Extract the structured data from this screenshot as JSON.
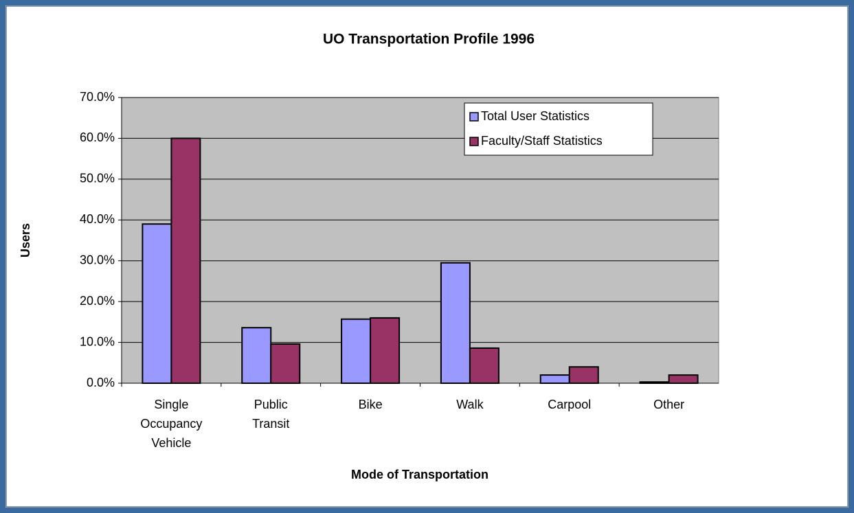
{
  "chart_data": {
    "type": "bar",
    "title": "UO Transportation Profile 1996",
    "x_label": "Mode of Transportation",
    "y_label": "Users",
    "categories": [
      "Single Occupancy Vehicle",
      "Public Transit",
      "Bike",
      "Walk",
      "Carpool",
      "Other"
    ],
    "series": [
      {
        "name": "Total User Statistics",
        "color": "#9999ff",
        "values": [
          39.0,
          13.6,
          15.7,
          29.5,
          2.0,
          0.3
        ]
      },
      {
        "name": "Faculty/Staff Statistics",
        "color": "#993366",
        "values": [
          60.0,
          9.6,
          16.0,
          8.6,
          4.0,
          2.0
        ]
      }
    ],
    "ylim": [
      0,
      70
    ],
    "yticks": [
      {
        "value": 0,
        "label": "0.0%"
      },
      {
        "value": 10,
        "label": "10.0%"
      },
      {
        "value": 20,
        "label": "20.0%"
      },
      {
        "value": 30,
        "label": "30.0%"
      },
      {
        "value": 40,
        "label": "40.0%"
      },
      {
        "value": 50,
        "label": "50.0%"
      },
      {
        "value": 60,
        "label": "60.0%"
      },
      {
        "value": 70,
        "label": "70.0%"
      }
    ],
    "grid": true,
    "legend": "upper right",
    "plot_background": "#c0c0c0"
  }
}
